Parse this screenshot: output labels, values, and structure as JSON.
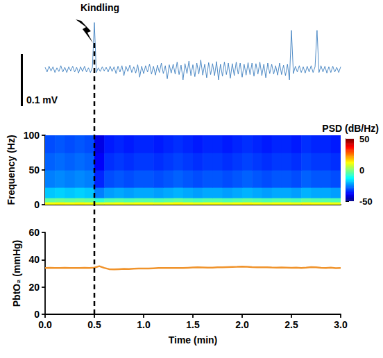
{
  "chart_data": [
    {
      "type": "line",
      "color": "#3d7fbf",
      "xlim": [
        0,
        3
      ],
      "ylim": [
        -0.1,
        0.1
      ],
      "tick_labels": false,
      "scale_bar": {
        "value": 0.1,
        "label": "0.1 mV"
      },
      "annotation": {
        "text": "Kindling",
        "x": 0.5
      },
      "x": [
        0,
        0.02,
        0.04,
        0.06,
        0.08,
        0.1,
        0.12,
        0.14,
        0.16,
        0.18,
        0.2,
        0.22,
        0.24,
        0.26,
        0.28,
        0.3,
        0.32,
        0.34,
        0.36,
        0.38,
        0.4,
        0.42,
        0.44,
        0.46,
        0.48,
        0.5,
        0.52,
        0.54,
        0.56,
        0.58,
        0.6,
        0.62,
        0.64,
        0.66,
        0.68,
        0.7,
        0.72,
        0.74,
        0.76,
        0.78,
        0.8,
        0.82,
        0.84,
        0.86,
        0.88,
        0.9,
        0.92,
        0.94,
        0.96,
        0.98,
        1,
        1.02,
        1.04,
        1.06,
        1.08,
        1.1,
        1.12,
        1.14,
        1.16,
        1.18,
        1.2,
        1.22,
        1.24,
        1.26,
        1.28,
        1.3,
        1.32,
        1.34,
        1.36,
        1.38,
        1.4,
        1.42,
        1.44,
        1.46,
        1.48,
        1.5,
        1.52,
        1.54,
        1.56,
        1.58,
        1.6,
        1.62,
        1.64,
        1.66,
        1.68,
        1.7,
        1.72,
        1.74,
        1.76,
        1.78,
        1.8,
        1.82,
        1.84,
        1.86,
        1.88,
        1.9,
        1.92,
        1.94,
        1.96,
        1.98,
        2,
        2.02,
        2.04,
        2.06,
        2.08,
        2.1,
        2.12,
        2.14,
        2.16,
        2.18,
        2.2,
        2.22,
        2.24,
        2.26,
        2.28,
        2.3,
        2.32,
        2.34,
        2.36,
        2.38,
        2.4,
        2.42,
        2.44,
        2.46,
        2.48,
        2.5,
        2.52,
        2.54,
        2.56,
        2.58,
        2.6,
        2.62,
        2.64,
        2.66,
        2.68,
        2.7,
        2.72,
        2.74,
        2.76,
        2.78,
        2.8,
        2.82,
        2.84,
        2.86,
        2.88,
        2.9,
        2.92,
        2.94,
        2.96,
        2.98,
        3
      ],
      "values": [
        0.004,
        -0.005,
        0.006,
        -0.003,
        0.005,
        -0.006,
        0.003,
        -0.004,
        0.007,
        -0.005,
        0.004,
        -0.006,
        0.005,
        -0.003,
        0.006,
        -0.005,
        0.004,
        -0.007,
        0.005,
        -0.004,
        0.006,
        -0.005,
        0.003,
        -0.006,
        0.004,
        0.09,
        -0.006,
        0.003,
        -0.004,
        0.005,
        -0.003,
        0.004,
        -0.005,
        0.006,
        -0.004,
        0.005,
        -0.008,
        0.006,
        -0.005,
        0.007,
        -0.012,
        0.006,
        -0.004,
        0.008,
        -0.006,
        0.005,
        -0.007,
        0.009,
        -0.015,
        0.006,
        -0.008,
        0.007,
        -0.005,
        0.01,
        -0.009,
        0.006,
        -0.011,
        0.008,
        -0.006,
        0.012,
        -0.008,
        0.007,
        -0.018,
        0.009,
        -0.007,
        0.01,
        -0.009,
        0.014,
        -0.01,
        0.008,
        -0.02,
        0.011,
        -0.008,
        0.016,
        -0.012,
        0.009,
        -0.014,
        0.012,
        -0.009,
        0.018,
        -0.011,
        0.01,
        -0.016,
        0.013,
        -0.01,
        0.011,
        -0.012,
        0.015,
        -0.02,
        0.01,
        -0.013,
        0.014,
        -0.01,
        0.012,
        -0.017,
        0.011,
        -0.012,
        0.014,
        -0.009,
        0.012,
        -0.015,
        0.01,
        -0.011,
        0.013,
        -0.01,
        0.012,
        -0.013,
        0.011,
        -0.009,
        0.014,
        -0.012,
        0.01,
        -0.016,
        0.012,
        -0.008,
        0.01,
        -0.009,
        0.007,
        -0.011,
        0.012,
        -0.01,
        0.008,
        -0.012,
        0.01,
        -0.02,
        0.075,
        -0.008,
        0.006,
        -0.005,
        0.007,
        -0.006,
        0.005,
        -0.007,
        0.006,
        -0.005,
        0.007,
        -0.006,
        0.005,
        0.075,
        -0.006,
        0.007,
        -0.005,
        0.006,
        -0.007,
        0.005,
        -0.006,
        0.006,
        -0.005,
        0.004,
        -0.006,
        0.005
      ]
    },
    {
      "type": "heatmap",
      "y_label": "Frequency (Hz)",
      "xlim": [
        0,
        3
      ],
      "ylim": [
        0,
        100
      ],
      "yticks": [
        0,
        50,
        100
      ],
      "tick_labels": "y",
      "time_edges": [
        0,
        0.1,
        0.2,
        0.3,
        0.4,
        0.5,
        0.6,
        0.7,
        0.8,
        0.9,
        1,
        1.1,
        1.2,
        1.3,
        1.4,
        1.5,
        1.6,
        1.7,
        1.8,
        1.9,
        2,
        2.1,
        2.2,
        2.3,
        2.4,
        2.5,
        2.6,
        2.7,
        2.8,
        2.9,
        3
      ],
      "freq_edges": [
        0,
        4,
        10,
        25,
        50,
        75,
        100
      ],
      "psd": [
        [
          12,
          13,
          12,
          13,
          12,
          10,
          11,
          12,
          11,
          12,
          12,
          11,
          12,
          13,
          12,
          11,
          12,
          12,
          11,
          12,
          13,
          12,
          11,
          12,
          12,
          11,
          13,
          12,
          12,
          11
        ],
        [
          -3,
          -2,
          -3,
          -2,
          -3,
          -8,
          -5,
          -4,
          -5,
          -4,
          -4,
          -5,
          -4,
          -3,
          -4,
          -5,
          -4,
          -4,
          -5,
          -4,
          -3,
          -4,
          -5,
          -4,
          -4,
          -5,
          -3,
          -4,
          -4,
          -5
        ],
        [
          -18,
          -17,
          -18,
          -17,
          -18,
          -25,
          -22,
          -21,
          -22,
          -21,
          -21,
          -22,
          -21,
          -20,
          -21,
          -22,
          -21,
          -21,
          -22,
          -21,
          -20,
          -21,
          -22,
          -21,
          -21,
          -22,
          -20,
          -21,
          -21,
          -22
        ],
        [
          -25,
          -24,
          -25,
          -24,
          -25,
          -34,
          -30,
          -29,
          -30,
          -29,
          -29,
          -30,
          -29,
          -28,
          -29,
          -30,
          -29,
          -29,
          -30,
          -29,
          -28,
          -29,
          -30,
          -29,
          -29,
          -30,
          -28,
          -29,
          -29,
          -30
        ],
        [
          -28,
          -27,
          -28,
          -27,
          -28,
          -38,
          -33,
          -32,
          -33,
          -32,
          -32,
          -33,
          -32,
          -31,
          -32,
          -33,
          -32,
          -32,
          -33,
          -32,
          -31,
          -32,
          -33,
          -32,
          -32,
          -33,
          -31,
          -32,
          -32,
          -33
        ],
        [
          -30,
          -29,
          -30,
          -29,
          -30,
          -40,
          -35,
          -34,
          -35,
          -34,
          -34,
          -35,
          -34,
          -33,
          -34,
          -35,
          -34,
          -34,
          -35,
          -34,
          -33,
          -34,
          -35,
          -34,
          -34,
          -35,
          -33,
          -34,
          -34,
          -35
        ]
      ],
      "colorbar": {
        "label": "PSD (dB/Hz)",
        "range": [
          -50,
          50
        ],
        "ticks": [
          -50,
          0,
          50
        ]
      }
    },
    {
      "type": "line",
      "color": "#f0932b",
      "x_label": "Time (min)",
      "y_label": "PbtO₂ (mmHg)",
      "xlim": [
        0,
        3
      ],
      "xticks": [
        {
          "value": 0,
          "label": "0.0"
        },
        0.5,
        {
          "value": 1,
          "label": "1.0"
        },
        1.5,
        {
          "value": 2,
          "label": "2.0"
        },
        2.5,
        {
          "value": 3,
          "label": "3.0"
        }
      ],
      "ylim": [
        0,
        60
      ],
      "yticks": [
        0,
        20,
        40,
        60
      ],
      "x": [
        0,
        0.05,
        0.1,
        0.15,
        0.2,
        0.25,
        0.3,
        0.35,
        0.4,
        0.45,
        0.5,
        0.55,
        0.6,
        0.65,
        0.7,
        0.75,
        0.8,
        0.85,
        0.9,
        0.95,
        1,
        1.05,
        1.1,
        1.15,
        1.2,
        1.25,
        1.3,
        1.35,
        1.4,
        1.45,
        1.5,
        1.55,
        1.6,
        1.65,
        1.7,
        1.75,
        1.8,
        1.85,
        1.9,
        1.95,
        2,
        2.05,
        2.1,
        2.15,
        2.2,
        2.25,
        2.3,
        2.35,
        2.4,
        2.45,
        2.5,
        2.55,
        2.6,
        2.65,
        2.7,
        2.75,
        2.8,
        2.85,
        2.9,
        2.95,
        3
      ],
      "values": [
        34,
        34.1,
        33.9,
        34,
        34.1,
        34,
        33.9,
        34,
        34.1,
        34,
        34.2,
        35.3,
        34,
        33.1,
        32.9,
        33.1,
        33.3,
        33.2,
        33.4,
        33.5,
        33.6,
        33.5,
        33.7,
        33.9,
        34,
        34,
        33.9,
        34,
        33.9,
        34.1,
        34.3,
        34.4,
        34.3,
        34.2,
        34.2,
        34.4,
        34.5,
        34.6,
        34.7,
        34.8,
        35,
        34.8,
        34.6,
        34.5,
        34.4,
        34.5,
        34.3,
        34.2,
        34.3,
        34.2,
        34.1,
        34.2,
        34,
        34.2,
        34.6,
        34.5,
        34.1,
        34,
        34.2,
        33.8,
        33.9
      ]
    }
  ]
}
